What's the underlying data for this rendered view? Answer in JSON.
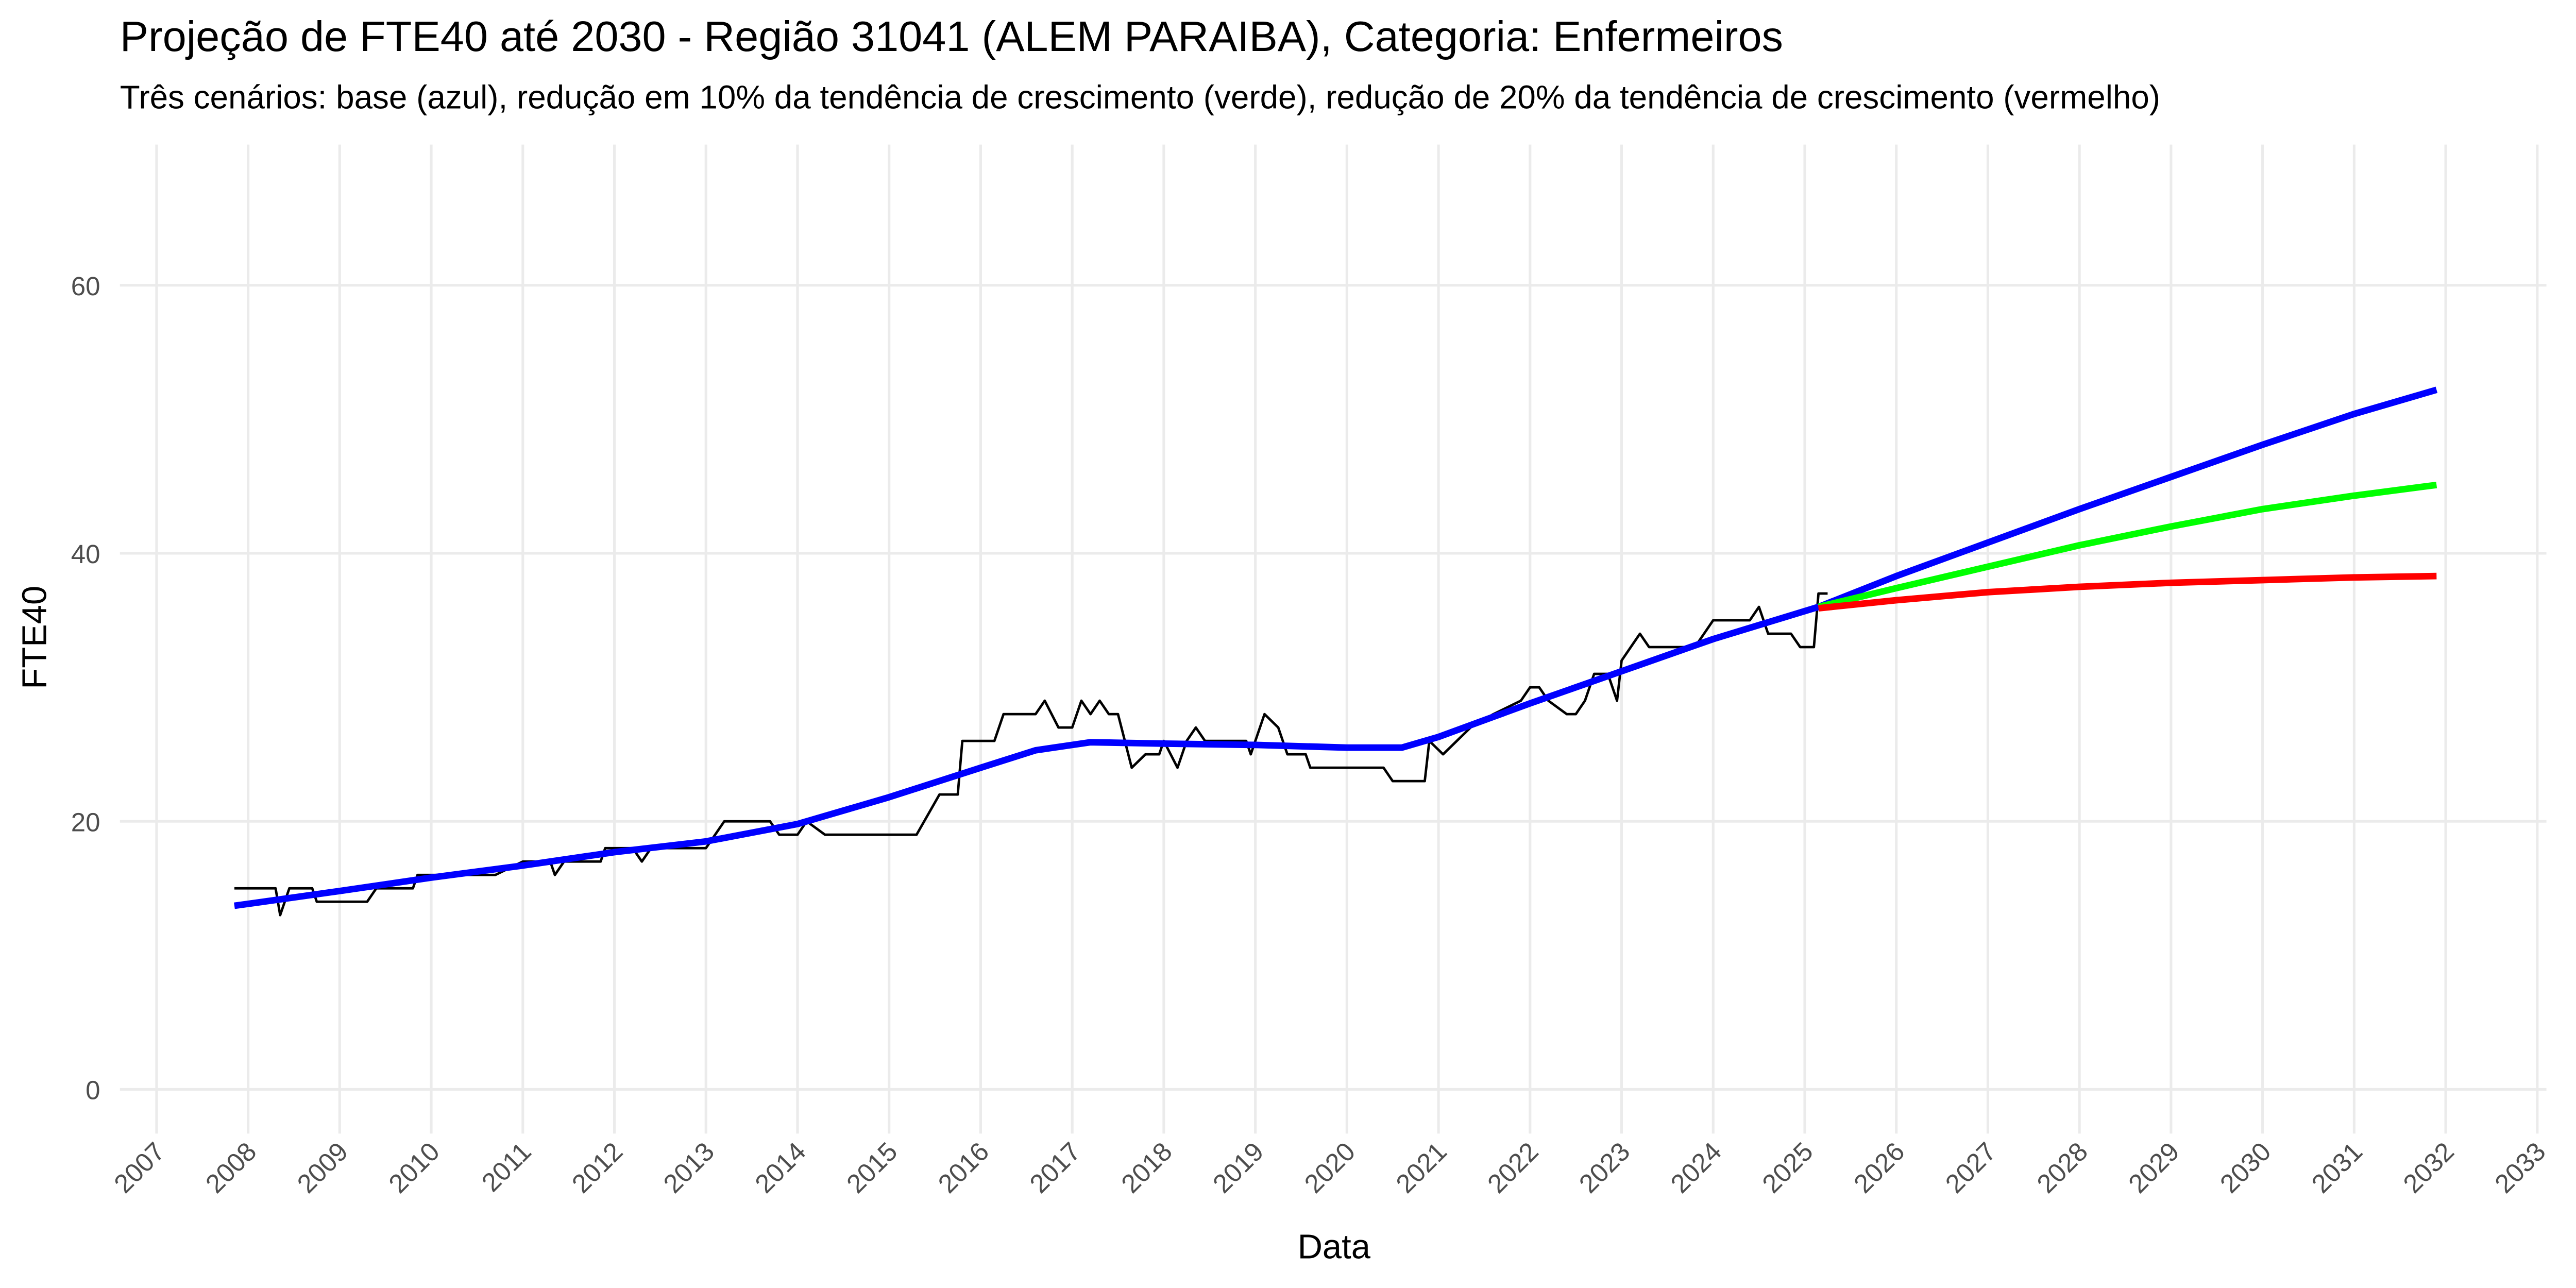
{
  "chart_data": {
    "type": "line",
    "title": "Projeção de FTE40 até 2030 - Região 31041 (ALEM  PARAIBA), Categoria: Enfermeiros",
    "subtitle": "Três cenários: base (azul), redução em 10% da tendência de crescimento (verde), redução de 20% da tendência de crescimento (vermelho)",
    "x_label": "Data",
    "y_label": "FTE40",
    "xlim": [
      2006.6,
      2033.1
    ],
    "ylim": [
      -3.3,
      70.5
    ],
    "xticks": [
      2007,
      2008,
      2009,
      2010,
      2011,
      2012,
      2013,
      2014,
      2015,
      2016,
      2017,
      2018,
      2019,
      2020,
      2021,
      2022,
      2023,
      2024,
      2025,
      2026,
      2027,
      2028,
      2029,
      2030,
      2031,
      2032,
      2033
    ],
    "yticks": [
      0,
      20,
      40,
      60
    ],
    "grid": true,
    "series": [
      {
        "color": "#000000",
        "width": 1.5,
        "x": [
          2007.85,
          2008.3,
          2008.35,
          2008.45,
          2008.7,
          2008.75,
          2009.3,
          2009.4,
          2009.8,
          2009.85,
          2010.5,
          2010.7,
          2011.0,
          2011.3,
          2011.35,
          2011.45,
          2011.85,
          2011.9,
          2012.2,
          2012.3,
          2012.4,
          2013.0,
          2013.2,
          2013.7,
          2013.8,
          2014.0,
          2014.1,
          2014.3,
          2015.3,
          2015.55,
          2015.75,
          2015.8,
          2016.15,
          2016.25,
          2016.6,
          2016.7,
          2016.85,
          2017.0,
          2017.1,
          2017.2,
          2017.3,
          2017.4,
          2017.5,
          2017.65,
          2017.8,
          2017.95,
          2018.0,
          2018.15,
          2018.25,
          2018.35,
          2018.45,
          2018.9,
          2018.95,
          2019.1,
          2019.25,
          2019.35,
          2019.55,
          2019.6,
          2020.4,
          2020.5,
          2020.85,
          2020.9,
          2021.05,
          2021.2,
          2021.35,
          2021.6,
          2021.9,
          2022.0,
          2022.1,
          2022.2,
          2022.4,
          2022.5,
          2022.6,
          2022.7,
          2022.85,
          2022.95,
          2023.0,
          2023.2,
          2023.3,
          2023.8,
          2023.9,
          2024.0,
          2024.4,
          2024.5,
          2024.6,
          2024.85,
          2024.95,
          2025.1,
          2025.15,
          2025.25
        ],
        "values": [
          15,
          15,
          13,
          15,
          15,
          14,
          14,
          15,
          15,
          16,
          16,
          16,
          17,
          17,
          16,
          17,
          17,
          18,
          18,
          17,
          18,
          18,
          20,
          20,
          19,
          19,
          20,
          19,
          19,
          22,
          22,
          26,
          26,
          28,
          28,
          29,
          27,
          27,
          29,
          28,
          29,
          28,
          28,
          24,
          25,
          25,
          26,
          24,
          26,
          27,
          26,
          26,
          25,
          28,
          27,
          25,
          25,
          24,
          24,
          23,
          23,
          26,
          25,
          26,
          27,
          28,
          29,
          30,
          30,
          29,
          28,
          28,
          29,
          31,
          31,
          29,
          32,
          34,
          33,
          33,
          34,
          35,
          35,
          36,
          34,
          34,
          33,
          33,
          37,
          37
        ]
      },
      {
        "color": "#0000ff",
        "width": 4,
        "x": [
          2007.85,
          2009,
          2010,
          2011,
          2012,
          2013,
          2014,
          2015,
          2016,
          2016.6,
          2017.2,
          2018,
          2019,
          2020,
          2020.6,
          2021,
          2022,
          2023,
          2024,
          2025.15,
          2026,
          2027,
          2028,
          2029,
          2030,
          2031,
          2031.9
        ],
        "values": [
          13.7,
          14.8,
          15.8,
          16.7,
          17.7,
          18.5,
          19.8,
          21.8,
          24,
          25.3,
          25.9,
          25.8,
          25.7,
          25.5,
          25.5,
          26.3,
          28.8,
          31.2,
          33.6,
          36,
          38.3,
          40.8,
          43.3,
          45.7,
          48.1,
          50.4,
          52.2
        ]
      },
      {
        "color": "#00ff00",
        "width": 4,
        "x": [
          2025.15,
          2026,
          2027,
          2028,
          2029,
          2030,
          2031,
          2031.9
        ],
        "values": [
          36,
          37.4,
          39.0,
          40.6,
          42.0,
          43.3,
          44.3,
          45.1
        ]
      },
      {
        "color": "#ff0000",
        "width": 4,
        "x": [
          2025.15,
          2026,
          2027,
          2028,
          2029,
          2030,
          2031,
          2031.9
        ],
        "values": [
          35.9,
          36.5,
          37.1,
          37.5,
          37.8,
          38.0,
          38.2,
          38.3
        ]
      }
    ]
  }
}
